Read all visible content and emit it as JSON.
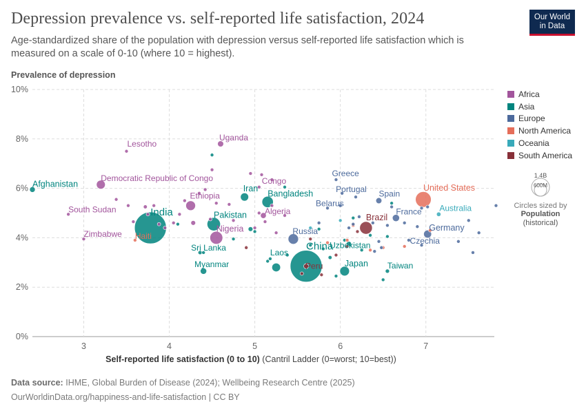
{
  "header": {
    "title": "Depression prevalence vs. self-reported life satisfaction, 2024",
    "subtitle": "Age-standardized share of the population with depression versus self-reported life satisfaction which is measured on a scale of 0-10 (where 10 = highest).",
    "logo_line1": "Our World",
    "logo_line2": "in Data"
  },
  "legend": {
    "items": [
      {
        "name": "Africa",
        "color": "#a2559c"
      },
      {
        "name": "Asia",
        "color": "#00847e"
      },
      {
        "name": "Europe",
        "color": "#4c6a9c"
      },
      {
        "name": "North America",
        "color": "#e56e5a"
      },
      {
        "name": "Oceania",
        "color": "#38aaba"
      },
      {
        "name": "South America",
        "color": "#883039"
      }
    ],
    "size_max": "1.4B",
    "size_mid": "600M",
    "size_note": "Circles sized by",
    "size_var": "Population",
    "size_var2": "(historical)"
  },
  "footer": {
    "source_label": "Data source:",
    "source_text": "IHME, Global Burden of Disease (2024); Wellbeing Research Centre (2025)",
    "url": "OurWorldinData.org/happiness-and-life-satisfaction | CC BY"
  },
  "chart_data": {
    "type": "scatter",
    "title": "Depression prevalence vs. self-reported life satisfaction, 2024",
    "ylabel": "Prevalence of depression",
    "xlabel_bold": "Self-reported life satisfaction (0 to 10)",
    "xlabel_rest": " (Cantril Ladder (0=worst; 10=best))",
    "xlim": [
      2.4,
      7.8
    ],
    "ylim": [
      0,
      10
    ],
    "xticks": [
      3,
      4,
      5,
      6,
      7
    ],
    "yticks": [
      0,
      2,
      4,
      6,
      8,
      10
    ],
    "ytick_labels": [
      "0%",
      "2%",
      "4%",
      "6%",
      "8%",
      "10%"
    ],
    "labeled_points": [
      {
        "label": "Afghanistan",
        "region": "Asia",
        "x": 2.4,
        "y": 5.95,
        "pop": 42
      },
      {
        "label": "Lesotho",
        "region": "Africa",
        "x": 3.5,
        "y": 7.5,
        "pop": 2.3
      },
      {
        "label": "Uganda",
        "region": "Africa",
        "x": 4.6,
        "y": 7.8,
        "pop": 49
      },
      {
        "label": "Democratic Republic of Congo",
        "region": "Africa",
        "x": 3.2,
        "y": 6.15,
        "pop": 105
      },
      {
        "label": "South Sudan",
        "region": "Africa",
        "x": 2.82,
        "y": 4.95,
        "pop": 11
      },
      {
        "label": "Zimbabwe",
        "region": "Africa",
        "x": 3.0,
        "y": 3.95,
        "pop": 16
      },
      {
        "label": "India",
        "region": "Asia",
        "x": 3.78,
        "y": 4.4,
        "pop": 1430
      },
      {
        "label": "Haiti",
        "region": "North America",
        "x": 3.6,
        "y": 3.9,
        "pop": 11.7
      },
      {
        "label": "Ethiopia",
        "region": "Africa",
        "x": 4.25,
        "y": 5.3,
        "pop": 126
      },
      {
        "label": "Pakistan",
        "region": "Asia",
        "x": 4.52,
        "y": 4.55,
        "pop": 240
      },
      {
        "label": "Nigeria",
        "region": "Africa",
        "x": 4.55,
        "y": 4.0,
        "pop": 223
      },
      {
        "label": "Sri Lanka",
        "region": "Asia",
        "x": 4.36,
        "y": 3.4,
        "pop": 22
      },
      {
        "label": "Myanmar",
        "region": "Asia",
        "x": 4.4,
        "y": 2.65,
        "pop": 54
      },
      {
        "label": "Iran",
        "region": "Asia",
        "x": 4.88,
        "y": 5.65,
        "pop": 89
      },
      {
        "label": "Congo",
        "region": "Africa",
        "x": 5.05,
        "y": 6.05,
        "pop": 6
      },
      {
        "label": "Bangladesh",
        "region": "Asia",
        "x": 5.15,
        "y": 5.45,
        "pop": 173
      },
      {
        "label": "Algeria",
        "region": "Africa",
        "x": 5.1,
        "y": 4.9,
        "pop": 45
      },
      {
        "label": "Laos",
        "region": "Asia",
        "x": 5.18,
        "y": 3.15,
        "pop": 7.6
      },
      {
        "label": "China",
        "region": "Asia",
        "x": 5.6,
        "y": 2.85,
        "pop": 1410
      },
      {
        "label": "Peru",
        "region": "South America",
        "x": 5.6,
        "y": 2.85,
        "pop": 34
      },
      {
        "label": "Russia",
        "region": "Europe",
        "x": 5.45,
        "y": 3.95,
        "pop": 144
      },
      {
        "label": "Greece",
        "region": "Europe",
        "x": 5.95,
        "y": 6.35,
        "pop": 10.4
      },
      {
        "label": "Portugal",
        "region": "Europe",
        "x": 6.02,
        "y": 5.8,
        "pop": 10.3
      },
      {
        "label": "Belarus",
        "region": "Europe",
        "x": 5.85,
        "y": 5.2,
        "pop": 9.2
      },
      {
        "label": "Uzbekistan",
        "region": "Asia",
        "x": 6.1,
        "y": 3.75,
        "pop": 36
      },
      {
        "label": "Brazil",
        "region": "South America",
        "x": 6.3,
        "y": 4.4,
        "pop": 216
      },
      {
        "label": "Japan",
        "region": "Asia",
        "x": 6.05,
        "y": 2.65,
        "pop": 124
      },
      {
        "label": "Spain",
        "region": "Europe",
        "x": 6.45,
        "y": 5.5,
        "pop": 48
      },
      {
        "label": "France",
        "region": "Europe",
        "x": 6.65,
        "y": 4.8,
        "pop": 68
      },
      {
        "label": "Taiwan",
        "region": "Asia",
        "x": 6.55,
        "y": 2.65,
        "pop": 23
      },
      {
        "label": "United States",
        "region": "North America",
        "x": 6.97,
        "y": 5.55,
        "pop": 335
      },
      {
        "label": "Australia",
        "region": "Oceania",
        "x": 7.15,
        "y": 4.95,
        "pop": 26
      },
      {
        "label": "Germany",
        "region": "Europe",
        "x": 7.02,
        "y": 4.15,
        "pop": 84
      },
      {
        "label": "Czechia",
        "region": "Europe",
        "x": 6.95,
        "y": 3.7,
        "pop": 10.5
      }
    ],
    "unlabeled_points": [
      {
        "region": "Africa",
        "x": 3.38,
        "y": 5.55,
        "pop": 3
      },
      {
        "region": "Africa",
        "x": 3.52,
        "y": 5.3,
        "pop": 3
      },
      {
        "region": "Africa",
        "x": 3.58,
        "y": 4.65,
        "pop": 4
      },
      {
        "region": "Africa",
        "x": 3.72,
        "y": 5.25,
        "pop": 20
      },
      {
        "region": "Africa",
        "x": 3.75,
        "y": 4.95,
        "pop": 6
      },
      {
        "region": "Africa",
        "x": 3.82,
        "y": 5.3,
        "pop": 4
      },
      {
        "region": "Africa",
        "x": 3.88,
        "y": 4.55,
        "pop": 5
      },
      {
        "region": "Africa",
        "x": 3.95,
        "y": 4.4,
        "pop": 4
      },
      {
        "region": "Africa",
        "x": 4.05,
        "y": 4.6,
        "pop": 4
      },
      {
        "region": "Africa",
        "x": 4.12,
        "y": 4.95,
        "pop": 5
      },
      {
        "region": "Africa",
        "x": 4.18,
        "y": 5.5,
        "pop": 5
      },
      {
        "region": "Africa",
        "x": 4.28,
        "y": 4.6,
        "pop": 30
      },
      {
        "region": "Africa",
        "x": 4.35,
        "y": 5.8,
        "pop": 5
      },
      {
        "region": "Africa",
        "x": 4.42,
        "y": 5.95,
        "pop": 4
      },
      {
        "region": "Africa",
        "x": 4.48,
        "y": 4.75,
        "pop": 4
      },
      {
        "region": "Africa",
        "x": 4.5,
        "y": 6.75,
        "pop": 4
      },
      {
        "region": "Africa",
        "x": 4.55,
        "y": 5.4,
        "pop": 8
      },
      {
        "region": "Africa",
        "x": 4.7,
        "y": 5.35,
        "pop": 5
      },
      {
        "region": "Africa",
        "x": 4.75,
        "y": 4.7,
        "pop": 4
      },
      {
        "region": "Africa",
        "x": 4.95,
        "y": 6.6,
        "pop": 4
      },
      {
        "region": "Africa",
        "x": 5.0,
        "y": 4.4,
        "pop": 4
      },
      {
        "region": "Africa",
        "x": 5.05,
        "y": 5.0,
        "pop": 5
      },
      {
        "region": "Africa",
        "x": 5.08,
        "y": 6.55,
        "pop": 4
      },
      {
        "region": "Africa",
        "x": 5.12,
        "y": 4.65,
        "pop": 12
      },
      {
        "region": "Africa",
        "x": 5.2,
        "y": 5.3,
        "pop": 6
      },
      {
        "region": "Africa",
        "x": 5.2,
        "y": 6.35,
        "pop": 4
      },
      {
        "region": "Africa",
        "x": 5.25,
        "y": 4.2,
        "pop": 4
      },
      {
        "region": "Africa",
        "x": 5.35,
        "y": 4.9,
        "pop": 4
      },
      {
        "region": "Asia",
        "x": 4.1,
        "y": 4.55,
        "pop": 4
      },
      {
        "region": "Asia",
        "x": 4.4,
        "y": 3.4,
        "pop": 4
      },
      {
        "region": "Asia",
        "x": 4.5,
        "y": 7.35,
        "pop": 4
      },
      {
        "region": "Asia",
        "x": 4.75,
        "y": 3.95,
        "pop": 4
      },
      {
        "region": "Asia",
        "x": 4.95,
        "y": 4.35,
        "pop": 30
      },
      {
        "region": "Asia",
        "x": 5.0,
        "y": 4.25,
        "pop": 4
      },
      {
        "region": "Asia",
        "x": 5.15,
        "y": 3.05,
        "pop": 4
      },
      {
        "region": "Asia",
        "x": 5.25,
        "y": 2.8,
        "pop": 100
      },
      {
        "region": "Asia",
        "x": 5.35,
        "y": 6.05,
        "pop": 4
      },
      {
        "region": "Asia",
        "x": 5.38,
        "y": 3.3,
        "pop": 5
      },
      {
        "region": "Asia",
        "x": 5.65,
        "y": 3.7,
        "pop": 4
      },
      {
        "region": "Asia",
        "x": 5.75,
        "y": 4.35,
        "pop": 4
      },
      {
        "region": "Asia",
        "x": 5.8,
        "y": 3.55,
        "pop": 4
      },
      {
        "region": "Asia",
        "x": 5.88,
        "y": 3.2,
        "pop": 20
      },
      {
        "region": "Asia",
        "x": 5.95,
        "y": 2.45,
        "pop": 10
      },
      {
        "region": "Asia",
        "x": 6.05,
        "y": 3.9,
        "pop": 5
      },
      {
        "region": "Asia",
        "x": 6.15,
        "y": 4.8,
        "pop": 4
      },
      {
        "region": "Asia",
        "x": 6.25,
        "y": 3.5,
        "pop": 4
      },
      {
        "region": "Asia",
        "x": 6.35,
        "y": 4.1,
        "pop": 4
      },
      {
        "region": "Asia",
        "x": 6.5,
        "y": 2.3,
        "pop": 4
      },
      {
        "region": "Asia",
        "x": 6.55,
        "y": 4.05,
        "pop": 5
      },
      {
        "region": "Asia",
        "x": 6.6,
        "y": 5.4,
        "pop": 4
      },
      {
        "region": "Europe",
        "x": 5.75,
        "y": 4.6,
        "pop": 4
      },
      {
        "region": "Europe",
        "x": 6.0,
        "y": 5.3,
        "pop": 4
      },
      {
        "region": "Europe",
        "x": 6.1,
        "y": 4.4,
        "pop": 4
      },
      {
        "region": "Europe",
        "x": 6.15,
        "y": 4.55,
        "pop": 4
      },
      {
        "region": "Europe",
        "x": 6.18,
        "y": 5.65,
        "pop": 4
      },
      {
        "region": "Europe",
        "x": 6.22,
        "y": 4.85,
        "pop": 4
      },
      {
        "region": "Europe",
        "x": 6.38,
        "y": 4.6,
        "pop": 4
      },
      {
        "region": "Europe",
        "x": 6.4,
        "y": 3.45,
        "pop": 4
      },
      {
        "region": "Europe",
        "x": 6.45,
        "y": 3.85,
        "pop": 4
      },
      {
        "region": "Europe",
        "x": 6.48,
        "y": 3.6,
        "pop": 4
      },
      {
        "region": "Europe",
        "x": 6.55,
        "y": 4.5,
        "pop": 4
      },
      {
        "region": "Europe",
        "x": 6.6,
        "y": 5.25,
        "pop": 4
      },
      {
        "region": "Europe",
        "x": 6.75,
        "y": 4.6,
        "pop": 4
      },
      {
        "region": "Europe",
        "x": 6.8,
        "y": 3.9,
        "pop": 4
      },
      {
        "region": "Europe",
        "x": 6.9,
        "y": 4.45,
        "pop": 4
      },
      {
        "region": "Europe",
        "x": 6.95,
        "y": 5.2,
        "pop": 10
      },
      {
        "region": "Europe",
        "x": 7.02,
        "y": 5.25,
        "pop": 4
      },
      {
        "region": "Europe",
        "x": 7.38,
        "y": 3.85,
        "pop": 4
      },
      {
        "region": "Europe",
        "x": 7.5,
        "y": 4.7,
        "pop": 4
      },
      {
        "region": "Europe",
        "x": 7.55,
        "y": 3.4,
        "pop": 4
      },
      {
        "region": "Europe",
        "x": 7.62,
        "y": 4.2,
        "pop": 4
      },
      {
        "region": "Europe",
        "x": 7.82,
        "y": 5.3,
        "pop": 4
      },
      {
        "region": "North America",
        "x": 5.85,
        "y": 3.8,
        "pop": 4
      },
      {
        "region": "North America",
        "x": 6.08,
        "y": 3.9,
        "pop": 4
      },
      {
        "region": "North America",
        "x": 6.15,
        "y": 4.5,
        "pop": 12
      },
      {
        "region": "North America",
        "x": 6.35,
        "y": 3.5,
        "pop": 4
      },
      {
        "region": "North America",
        "x": 6.5,
        "y": 3.6,
        "pop": 5
      },
      {
        "region": "North America",
        "x": 6.75,
        "y": 3.65,
        "pop": 4
      },
      {
        "region": "North America",
        "x": 7.05,
        "y": 4.3,
        "pop": 4
      },
      {
        "region": "Oceania",
        "x": 5.65,
        "y": 4.4,
        "pop": 4
      },
      {
        "region": "Oceania",
        "x": 6.0,
        "y": 4.7,
        "pop": 4
      },
      {
        "region": "South America",
        "x": 4.9,
        "y": 3.6,
        "pop": 5
      },
      {
        "region": "South America",
        "x": 5.55,
        "y": 2.55,
        "pop": 4
      },
      {
        "region": "South America",
        "x": 5.65,
        "y": 3.95,
        "pop": 4
      },
      {
        "region": "South America",
        "x": 5.78,
        "y": 2.5,
        "pop": 5
      },
      {
        "region": "South America",
        "x": 5.95,
        "y": 3.3,
        "pop": 4
      },
      {
        "region": "South America",
        "x": 6.08,
        "y": 3.65,
        "pop": 4
      },
      {
        "region": "South America",
        "x": 6.2,
        "y": 4.25,
        "pop": 4
      }
    ]
  }
}
